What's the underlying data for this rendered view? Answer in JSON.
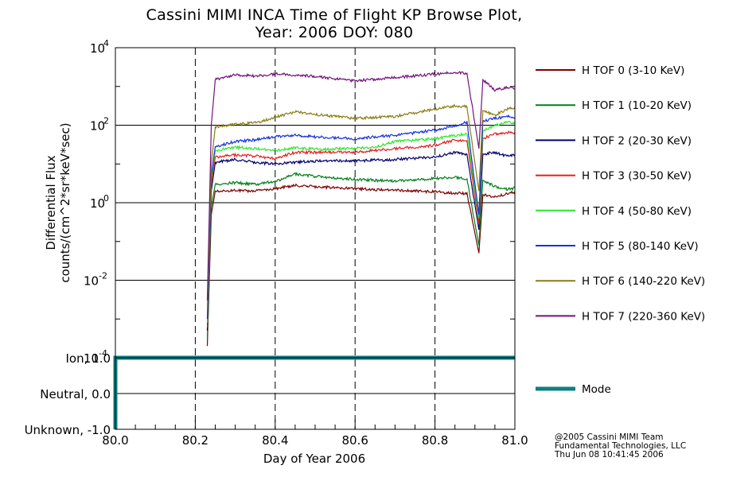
{
  "title": {
    "line1": "Cassini MIMI INCA Time of Flight KP Browse Plot,",
    "line2": "Year: 2006 DOY: 080"
  },
  "credits": {
    "line1": "@2005 Cassini MIMI Team",
    "line2": "Fundamental Technologies, LLC",
    "line3": "Thu Jun 08 10:41:45 2006"
  },
  "chart_data": [
    {
      "type": "line",
      "name": "flux-panel",
      "ylabel_line1": "Differential Flux",
      "ylabel_line2": "counts/(cm^2*sr*keV*sec)",
      "yscale": "log",
      "ylim": [
        0.0001,
        10000
      ],
      "xlim": [
        80.0,
        81.0
      ],
      "y_tick_labels": [
        {
          "value": 10000,
          "base": "10",
          "exp": "4"
        },
        {
          "value": 100,
          "base": "10",
          "exp": "2"
        },
        {
          "value": 1,
          "base": "10",
          "exp": "0"
        },
        {
          "value": 0.01,
          "base": "10",
          "exp": "-2"
        },
        {
          "value": 0.0001,
          "base": "10",
          "exp": "-4"
        }
      ],
      "horizontal_grid": [
        100,
        1,
        0.01
      ],
      "vertical_dashed": [
        80.2,
        80.4,
        80.6,
        80.8
      ],
      "data_start": 80.23,
      "gap_time": 80.91,
      "series": [
        {
          "name": "H TOF 0 (3-10 KeV)",
          "color": "#7a0000",
          "points": [
            [
              80.23,
              0.0002
            ],
            [
              80.24,
              0.5
            ],
            [
              80.25,
              2.0
            ],
            [
              80.3,
              2.1
            ],
            [
              80.35,
              2.0
            ],
            [
              80.4,
              2.3
            ],
            [
              80.45,
              2.8
            ],
            [
              80.5,
              2.6
            ],
            [
              80.6,
              2.3
            ],
            [
              80.7,
              2.1
            ],
            [
              80.8,
              1.9
            ],
            [
              80.88,
              1.7
            ],
            [
              80.91,
              0.05
            ],
            [
              80.92,
              1.6
            ],
            [
              80.95,
              1.4
            ],
            [
              80.98,
              1.7
            ],
            [
              81.0,
              1.9
            ]
          ]
        },
        {
          "name": "H TOF 1 (10-20 KeV)",
          "color": "#00801a",
          "points": [
            [
              80.23,
              0.0003
            ],
            [
              80.24,
              0.8
            ],
            [
              80.25,
              3.0
            ],
            [
              80.3,
              3.3
            ],
            [
              80.35,
              3.0
            ],
            [
              80.4,
              3.5
            ],
            [
              80.45,
              5.5
            ],
            [
              80.5,
              4.8
            ],
            [
              80.6,
              4.0
            ],
            [
              80.7,
              3.6
            ],
            [
              80.8,
              4.2
            ],
            [
              80.85,
              4.6
            ],
            [
              80.88,
              4.0
            ],
            [
              80.91,
              0.08
            ],
            [
              80.92,
              3.8
            ],
            [
              80.95,
              2.6
            ],
            [
              80.98,
              2.2
            ],
            [
              81.0,
              2.4
            ]
          ]
        },
        {
          "name": "H TOF 2 (20-30 KeV)",
          "color": "#00006e",
          "points": [
            [
              80.23,
              0.0005
            ],
            [
              80.24,
              2.0
            ],
            [
              80.25,
              11
            ],
            [
              80.3,
              13
            ],
            [
              80.35,
              11
            ],
            [
              80.4,
              10
            ],
            [
              80.45,
              11
            ],
            [
              80.5,
              12
            ],
            [
              80.6,
              12
            ],
            [
              80.7,
              13
            ],
            [
              80.8,
              15
            ],
            [
              80.85,
              20
            ],
            [
              80.88,
              17
            ],
            [
              80.91,
              0.2
            ],
            [
              80.92,
              18
            ],
            [
              80.95,
              20
            ],
            [
              80.98,
              16
            ],
            [
              81.0,
              17
            ]
          ]
        },
        {
          "name": "H TOF 3 (30-50 KeV)",
          "color": "#e41e1e",
          "points": [
            [
              80.23,
              0.0006
            ],
            [
              80.24,
              3.0
            ],
            [
              80.25,
              15
            ],
            [
              80.3,
              17
            ],
            [
              80.35,
              16
            ],
            [
              80.4,
              14
            ],
            [
              80.45,
              20
            ],
            [
              80.5,
              20
            ],
            [
              80.6,
              20
            ],
            [
              80.7,
              25
            ],
            [
              80.8,
              30
            ],
            [
              80.85,
              42
            ],
            [
              80.88,
              38
            ],
            [
              80.91,
              0.3
            ],
            [
              80.92,
              45
            ],
            [
              80.95,
              60
            ],
            [
              80.98,
              65
            ],
            [
              81.0,
              62
            ]
          ]
        },
        {
          "name": "H TOF 4 (50-80 KeV)",
          "color": "#2ce82c",
          "points": [
            [
              80.23,
              0.0008
            ],
            [
              80.24,
              4.0
            ],
            [
              80.25,
              22
            ],
            [
              80.3,
              27
            ],
            [
              80.35,
              25
            ],
            [
              80.4,
              22
            ],
            [
              80.45,
              26
            ],
            [
              80.5,
              24
            ],
            [
              80.6,
              25
            ],
            [
              80.65,
              27
            ],
            [
              80.7,
              38
            ],
            [
              80.8,
              45
            ],
            [
              80.85,
              55
            ],
            [
              80.88,
              60
            ],
            [
              80.91,
              0.4
            ],
            [
              80.92,
              70
            ],
            [
              80.95,
              100
            ],
            [
              80.98,
              120
            ],
            [
              81.0,
              115
            ]
          ]
        },
        {
          "name": "H TOF 5 (80-140 KeV)",
          "color": "#1630e0",
          "points": [
            [
              80.23,
              0.001
            ],
            [
              80.24,
              5.0
            ],
            [
              80.25,
              28
            ],
            [
              80.3,
              38
            ],
            [
              80.35,
              42
            ],
            [
              80.4,
              50
            ],
            [
              80.45,
              55
            ],
            [
              80.5,
              50
            ],
            [
              80.6,
              45
            ],
            [
              80.7,
              55
            ],
            [
              80.8,
              75
            ],
            [
              80.85,
              95
            ],
            [
              80.88,
              120
            ],
            [
              80.91,
              0.5
            ],
            [
              80.92,
              130
            ],
            [
              80.95,
              150
            ],
            [
              80.98,
              170
            ],
            [
              81.0,
              160
            ]
          ]
        },
        {
          "name": "H TOF 6 (140-220 KeV)",
          "color": "#8a7d14",
          "points": [
            [
              80.23,
              0.002
            ],
            [
              80.24,
              10
            ],
            [
              80.25,
              90
            ],
            [
              80.3,
              105
            ],
            [
              80.35,
              115
            ],
            [
              80.4,
              160
            ],
            [
              80.45,
              220
            ],
            [
              80.5,
              190
            ],
            [
              80.6,
              150
            ],
            [
              80.7,
              170
            ],
            [
              80.8,
              260
            ],
            [
              80.85,
              320
            ],
            [
              80.88,
              300
            ],
            [
              80.91,
              2.0
            ],
            [
              80.92,
              240
            ],
            [
              80.95,
              180
            ],
            [
              80.98,
              260
            ],
            [
              81.0,
              290
            ]
          ]
        },
        {
          "name": "H TOF 7 (220-360 KeV)",
          "color": "#72127a",
          "points": [
            [
              80.23,
              0.003
            ],
            [
              80.24,
              100
            ],
            [
              80.25,
              1500
            ],
            [
              80.3,
              2000
            ],
            [
              80.35,
              1850
            ],
            [
              80.4,
              2100
            ],
            [
              80.45,
              2000
            ],
            [
              80.5,
              1800
            ],
            [
              80.6,
              1400
            ],
            [
              80.7,
              1700
            ],
            [
              80.8,
              2100
            ],
            [
              80.85,
              2300
            ],
            [
              80.88,
              2200
            ],
            [
              80.91,
              25
            ],
            [
              80.92,
              1500
            ],
            [
              80.95,
              800
            ],
            [
              80.98,
              950
            ],
            [
              81.0,
              900
            ]
          ]
        }
      ]
    },
    {
      "type": "line",
      "name": "mode-panel",
      "xlabel": "Day of Year 2006",
      "xlim": [
        80.0,
        81.0
      ],
      "ylim": [
        -1.0,
        1.0
      ],
      "x_tick_labels": [
        "80.0",
        "80.2",
        "80.4",
        "80.6",
        "80.8",
        "81.0"
      ],
      "x_tick_values": [
        80.0,
        80.2,
        80.4,
        80.6,
        80.8,
        81.0
      ],
      "y_tick_labels": [
        {
          "value": 1.0,
          "label": "Ion, 1.0"
        },
        {
          "value": 0.0,
          "label": "Neutral, 0.0"
        },
        {
          "value": -1.0,
          "label": "Unknown, -1.0"
        }
      ],
      "horizontal_grid": [
        0.0
      ],
      "series": [
        {
          "name": "Mode",
          "color": "#0f7f82",
          "points": [
            [
              80.0,
              -1.0
            ],
            [
              80.0,
              1.0
            ],
            [
              81.0,
              1.0
            ]
          ]
        }
      ]
    }
  ]
}
